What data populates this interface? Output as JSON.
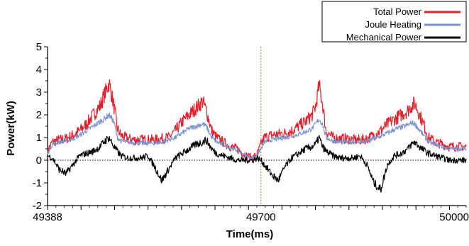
{
  "chart_data": {
    "type": "line",
    "xlabel": "Time(ms)",
    "ylabel": "Power(kW)",
    "xlim": [
      49388,
      50000
    ],
    "ylim": [
      -2,
      5
    ],
    "x_tick_labels": [
      "49388",
      "49700",
      "50000"
    ],
    "y_tick_labels": [
      "-2",
      "-1",
      "0",
      "1",
      "2",
      "3",
      "4",
      "5"
    ],
    "x_tick_values": [
      49388,
      49700,
      50000
    ],
    "y_tick_values": [
      -2,
      -1,
      0,
      1,
      2,
      3,
      4,
      5
    ],
    "reference_lines": [
      {
        "orientation": "horizontal",
        "value": 0,
        "style": "dotted",
        "color": "#000000"
      },
      {
        "orientation": "vertical",
        "value": 49700,
        "style": "dotted",
        "color": "#e08a1e"
      }
    ],
    "legend_position": "top-right",
    "series": [
      {
        "name": "Total Power",
        "color": "#e0202a",
        "x": [
          49388,
          49395,
          49405,
          49415,
          49425,
          49435,
          49445,
          49455,
          49465,
          49470,
          49478,
          49485,
          49490,
          49495,
          49505,
          49515,
          49525,
          49535,
          49545,
          49555,
          49565,
          49575,
          49585,
          49595,
          49605,
          49615,
          49620,
          49628,
          49635,
          49645,
          49655,
          49665,
          49670,
          49678,
          49688,
          49695,
          49700,
          49705,
          49715,
          49725,
          49735,
          49745,
          49755,
          49765,
          49775,
          49780,
          49785,
          49790,
          49795,
          49805,
          49815,
          49825,
          49835,
          49845,
          49855,
          49865,
          49875,
          49885,
          49895,
          49905,
          49915,
          49920,
          49925,
          49935,
          49945,
          49955,
          49965,
          49975,
          49985,
          49993,
          50000
        ],
        "y": [
          0.4,
          0.8,
          0.9,
          0.95,
          1.1,
          1.3,
          1.6,
          2.0,
          2.4,
          2.8,
          3.4,
          2.4,
          1.4,
          1.1,
          0.95,
          0.9,
          0.9,
          0.9,
          0.9,
          0.95,
          1.0,
          1.3,
          1.7,
          2.0,
          2.3,
          2.6,
          2.2,
          1.3,
          1.0,
          0.8,
          0.6,
          0.5,
          0.4,
          0.2,
          0.1,
          0.3,
          0.7,
          1.0,
          1.1,
          1.15,
          1.2,
          1.3,
          1.5,
          1.7,
          2.0,
          2.4,
          3.3,
          2.5,
          1.3,
          1.0,
          0.95,
          0.95,
          0.9,
          0.9,
          0.95,
          1.1,
          1.3,
          1.6,
          1.8,
          2.0,
          2.2,
          2.4,
          2.5,
          1.8,
          1.0,
          0.8,
          0.7,
          0.6,
          0.6,
          0.6,
          0.6
        ]
      },
      {
        "name": "Joule Heating",
        "color": "#7b92cf",
        "x": [
          49388,
          49395,
          49405,
          49415,
          49425,
          49435,
          49445,
          49455,
          49465,
          49470,
          49478,
          49485,
          49490,
          49495,
          49505,
          49515,
          49525,
          49535,
          49545,
          49555,
          49565,
          49575,
          49585,
          49595,
          49605,
          49615,
          49620,
          49628,
          49635,
          49645,
          49655,
          49665,
          49670,
          49678,
          49688,
          49695,
          49700,
          49705,
          49715,
          49725,
          49735,
          49745,
          49755,
          49765,
          49775,
          49780,
          49785,
          49790,
          49795,
          49805,
          49815,
          49825,
          49835,
          49845,
          49855,
          49865,
          49875,
          49885,
          49895,
          49905,
          49915,
          49920,
          49925,
          49935,
          49945,
          49955,
          49965,
          49975,
          49985,
          49993,
          50000
        ],
        "y": [
          0.3,
          0.7,
          0.8,
          0.85,
          0.95,
          1.1,
          1.3,
          1.5,
          1.7,
          1.8,
          2.0,
          1.7,
          1.0,
          0.85,
          0.8,
          0.75,
          0.75,
          0.75,
          0.75,
          0.8,
          0.9,
          1.0,
          1.2,
          1.4,
          1.5,
          1.6,
          1.5,
          1.0,
          0.8,
          0.7,
          0.55,
          0.45,
          0.35,
          0.2,
          0.1,
          0.25,
          0.5,
          0.8,
          0.9,
          0.95,
          1.0,
          1.05,
          1.15,
          1.25,
          1.4,
          1.6,
          1.8,
          1.6,
          1.0,
          0.85,
          0.8,
          0.8,
          0.8,
          0.8,
          0.85,
          0.95,
          1.05,
          1.2,
          1.35,
          1.45,
          1.55,
          1.65,
          1.6,
          1.2,
          0.8,
          0.7,
          0.6,
          0.5,
          0.5,
          0.5,
          0.5
        ]
      },
      {
        "name": "Mechanical Power",
        "color": "#000000",
        "x": [
          49388,
          49395,
          49405,
          49415,
          49425,
          49435,
          49445,
          49455,
          49465,
          49470,
          49478,
          49485,
          49490,
          49495,
          49505,
          49515,
          49525,
          49535,
          49545,
          49555,
          49565,
          49575,
          49585,
          49595,
          49605,
          49615,
          49620,
          49628,
          49635,
          49645,
          49655,
          49665,
          49670,
          49678,
          49688,
          49695,
          49700,
          49705,
          49715,
          49725,
          49735,
          49745,
          49755,
          49765,
          49775,
          49780,
          49785,
          49790,
          49795,
          49805,
          49815,
          49825,
          49835,
          49845,
          49855,
          49865,
          49875,
          49885,
          49895,
          49905,
          49915,
          49920,
          49925,
          49935,
          49945,
          49955,
          49965,
          49975,
          49985,
          49993,
          50000
        ],
        "y": [
          0.2,
          0.1,
          -0.4,
          -0.6,
          -0.2,
          0.2,
          0.3,
          0.4,
          0.6,
          0.8,
          1.0,
          0.6,
          0.4,
          0.2,
          0.1,
          0.1,
          0.1,
          0.2,
          -0.3,
          -0.9,
          -0.4,
          0.1,
          0.3,
          0.5,
          0.7,
          0.8,
          0.9,
          0.5,
          0.3,
          0.2,
          0.1,
          0.0,
          0.0,
          0.0,
          0.0,
          0.1,
          0.0,
          -0.2,
          -0.6,
          -0.9,
          -0.3,
          0.1,
          0.3,
          0.5,
          0.6,
          0.7,
          1.0,
          0.6,
          0.4,
          0.2,
          0.1,
          0.1,
          0.1,
          0.2,
          -0.2,
          -1.0,
          -1.3,
          -0.2,
          0.2,
          0.3,
          0.5,
          0.7,
          0.8,
          0.5,
          0.3,
          0.2,
          0.1,
          0.0,
          0.0,
          0.0,
          0.0
        ]
      }
    ]
  },
  "colors": {
    "zero_line": "#000000",
    "marker_line": "#e08a1e"
  }
}
